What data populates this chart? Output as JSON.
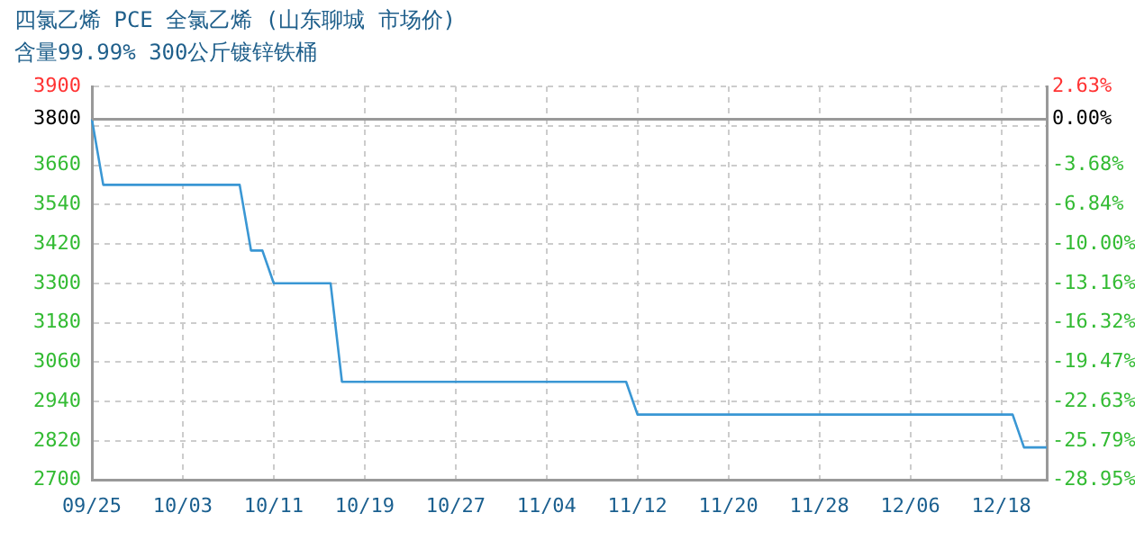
{
  "chart_data": {
    "type": "line",
    "title": "四氯乙烯 PCE 全氯乙烯 (山东聊城 市场价)",
    "subtitle": "含量99.99% 300公斤镀锌铁桶",
    "categories": [
      "09/25",
      null,
      null,
      null,
      null,
      null,
      null,
      null,
      "10/03",
      null,
      null,
      null,
      null,
      null,
      null,
      null,
      "10/11",
      null,
      null,
      null,
      null,
      null,
      null,
      null,
      "10/19",
      null,
      null,
      null,
      null,
      null,
      null,
      null,
      "10/27",
      null,
      null,
      null,
      null,
      null,
      null,
      null,
      "11/04",
      null,
      null,
      null,
      null,
      null,
      null,
      null,
      "11/12",
      null,
      null,
      null,
      null,
      null,
      null,
      null,
      "11/20",
      null,
      null,
      null,
      null,
      null,
      null,
      null,
      "11/28",
      null,
      null,
      null,
      null,
      null,
      null,
      null,
      "12/06",
      null,
      null,
      null,
      null,
      null,
      null,
      null,
      "12/18",
      null,
      null,
      null,
      null
    ],
    "series": [
      {
        "color": "#3a97d4",
        "values": [
          3800,
          3600,
          3600,
          3600,
          3600,
          3600,
          3600,
          3600,
          3600,
          3600,
          3600,
          3600,
          3600,
          3600,
          3400,
          3400,
          3300,
          3300,
          3300,
          3300,
          3300,
          3300,
          3000,
          3000,
          3000,
          3000,
          3000,
          3000,
          3000,
          3000,
          3000,
          3000,
          3000,
          3000,
          3000,
          3000,
          3000,
          3000,
          3000,
          3000,
          3000,
          3000,
          3000,
          3000,
          3000,
          3000,
          3000,
          3000,
          2900,
          2900,
          2900,
          2900,
          2900,
          2900,
          2900,
          2900,
          2900,
          2900,
          2900,
          2900,
          2900,
          2900,
          2900,
          2900,
          2900,
          2900,
          2900,
          2900,
          2900,
          2900,
          2900,
          2900,
          2900,
          2900,
          2900,
          2900,
          2900,
          2900,
          2900,
          2900,
          2900,
          2900,
          2800,
          2800,
          2800
        ]
      }
    ],
    "ylim": [
      2700,
      3900
    ],
    "yticks": [
      2700,
      2820,
      2940,
      3060,
      3180,
      3300,
      3420,
      3540,
      3660,
      {
        "value": 3780,
        "label": null
      },
      3800,
      3900
    ],
    "y2lim": [
      -28.95,
      2.63
    ],
    "y2ticks": [
      {
        "value": -28.95,
        "label": "-28.95%"
      },
      {
        "value": -25.79,
        "label": "-25.79%"
      },
      {
        "value": -22.63,
        "label": "-22.63%"
      },
      {
        "value": -19.47,
        "label": "-19.47%"
      },
      {
        "value": -16.32,
        "label": "-16.32%"
      },
      {
        "value": -13.16,
        "label": "-13.16%"
      },
      {
        "value": -10.0,
        "label": "-10.00%"
      },
      {
        "value": -6.84,
        "label": "-6.84%"
      },
      {
        "value": -3.68,
        "label": "-3.68%"
      },
      {
        "value": 0,
        "label": "0.00%"
      },
      {
        "value": 2.63,
        "label": "2.63%"
      }
    ],
    "ref_lines": [
      {
        "axis": "y",
        "value": 3800,
        "color": "#999999"
      }
    ],
    "grid": true,
    "marker": "none",
    "line_style": "solid",
    "legend": false
  }
}
